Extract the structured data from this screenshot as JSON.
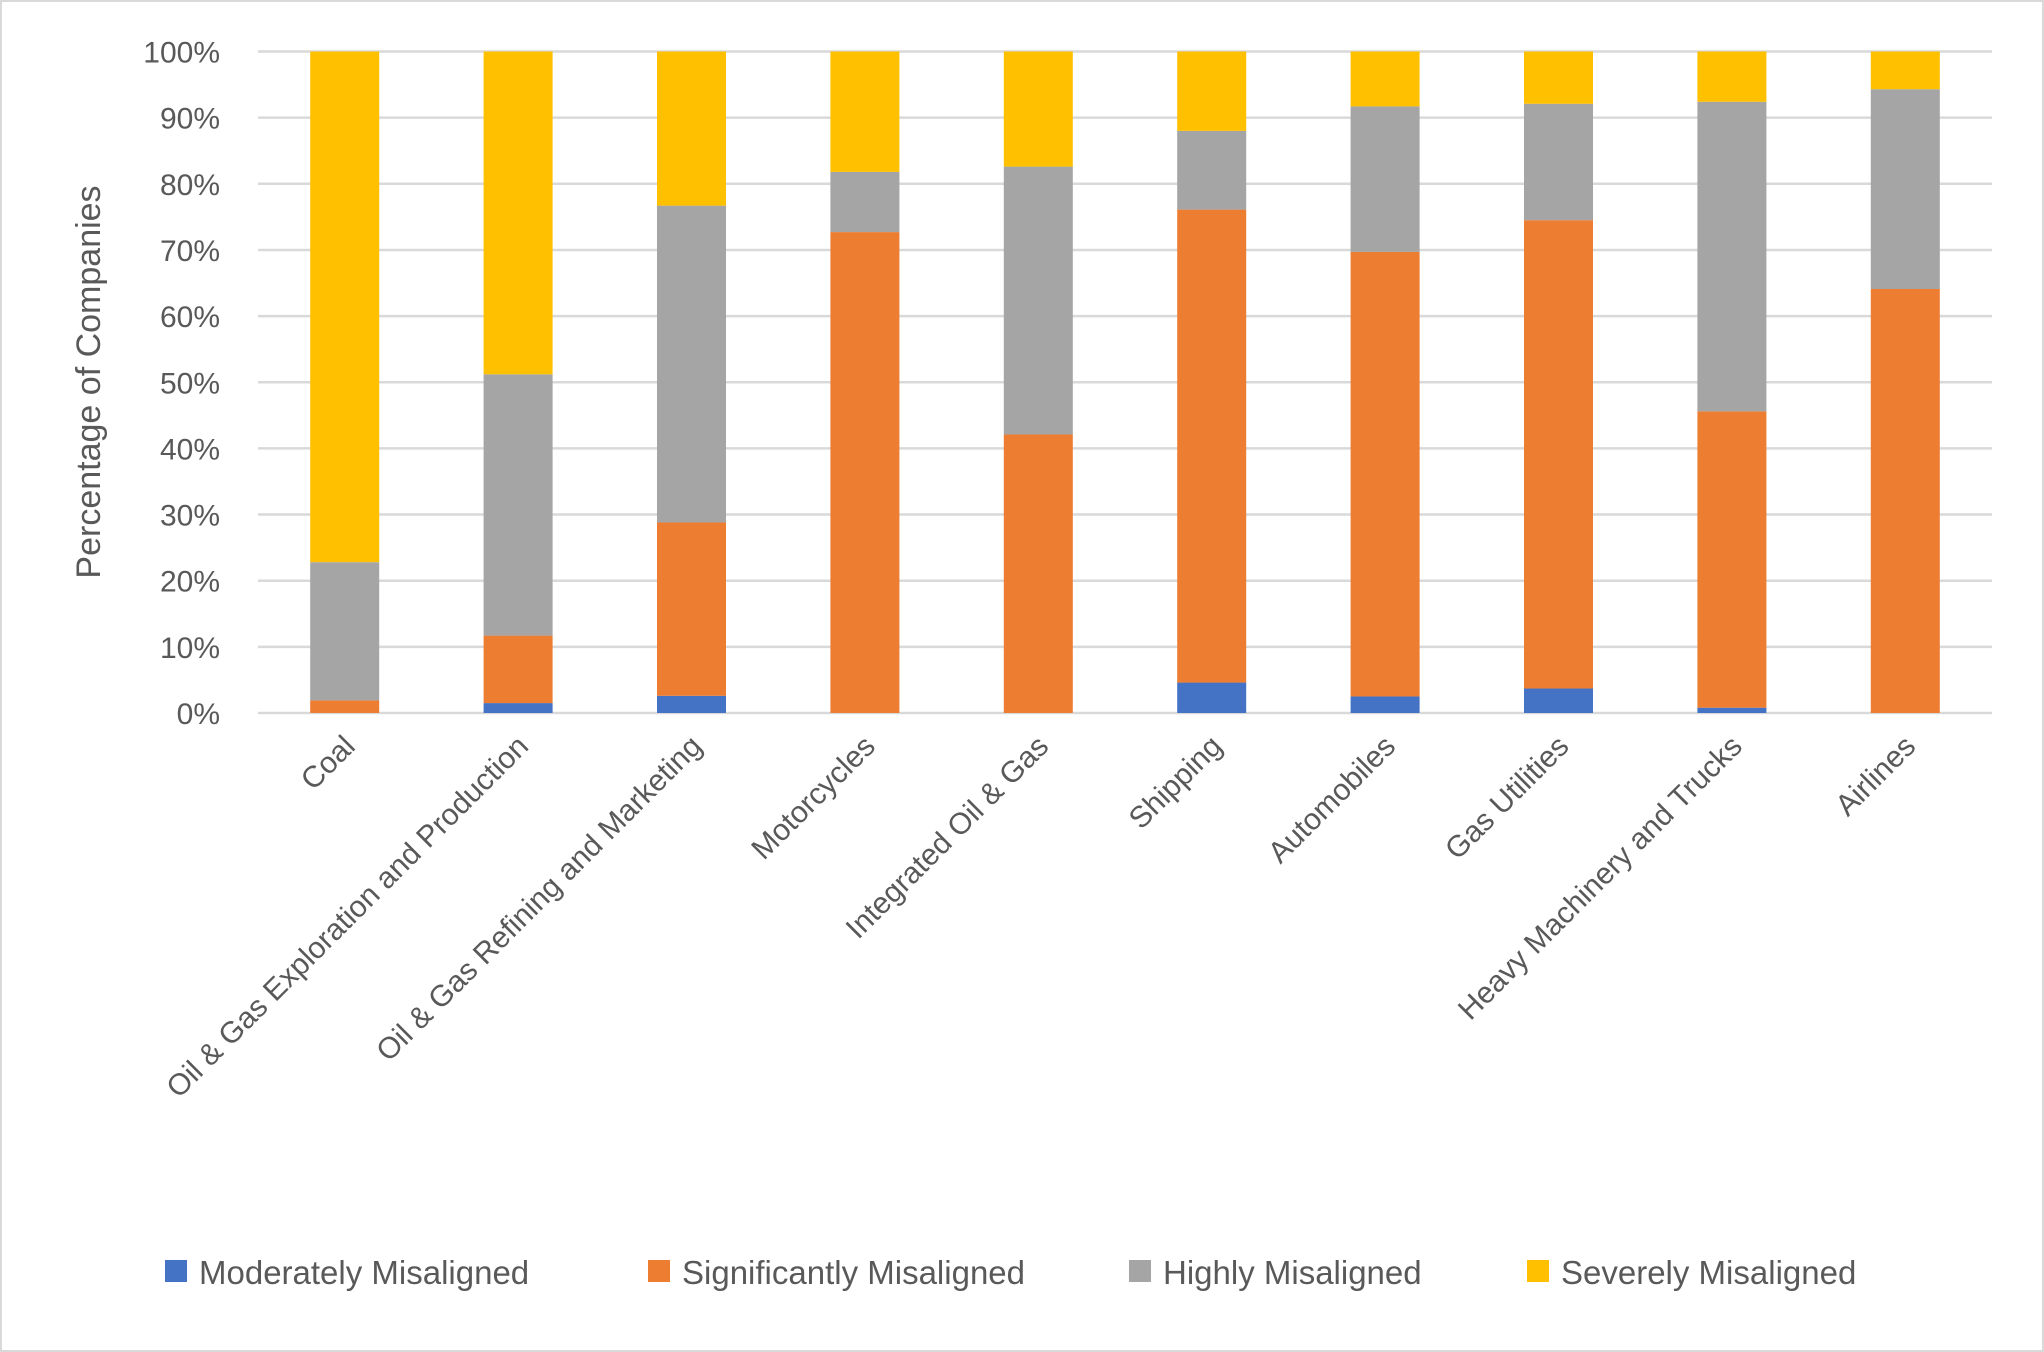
{
  "chart_data": {
    "type": "bar",
    "stacked": true,
    "percent_stacked": true,
    "title": "",
    "xlabel": "",
    "ylabel": "Percentage of Companies",
    "ylim": [
      0,
      100
    ],
    "yticks": [
      "0%",
      "10%",
      "20%",
      "30%",
      "40%",
      "50%",
      "60%",
      "70%",
      "80%",
      "90%",
      "100%"
    ],
    "grid": true,
    "legend_position": "bottom",
    "categories": [
      "Coal",
      "Oil & Gas Exploration and Production",
      "Oil & Gas Refining and Marketing",
      "Motorcycles",
      "Integrated Oil & Gas",
      "Shipping",
      "Automobiles",
      "Gas Utilities",
      "Heavy Machinery and Trucks",
      "Airlines"
    ],
    "series": [
      {
        "name": "Moderately Misaligned",
        "color": "#4472c4",
        "values": [
          0,
          1.5,
          2.6,
          0,
          0,
          4.6,
          2.5,
          3.7,
          0.8,
          0
        ]
      },
      {
        "name": "Significantly Misaligned",
        "color": "#ed7d31",
        "values": [
          1.9,
          10.2,
          26.2,
          72.7,
          42.1,
          71.5,
          67.2,
          70.8,
          44.8,
          64.1
        ]
      },
      {
        "name": "Highly Misaligned",
        "color": "#a5a5a5",
        "values": [
          20.9,
          39.5,
          47.9,
          9.1,
          40.5,
          11.9,
          22.0,
          17.6,
          46.8,
          30.2
        ]
      },
      {
        "name": "Severely Misaligned",
        "color": "#ffc000",
        "values": [
          77.2,
          48.8,
          23.3,
          18.2,
          17.4,
          12.0,
          8.3,
          7.9,
          7.6,
          5.7
        ]
      }
    ]
  }
}
